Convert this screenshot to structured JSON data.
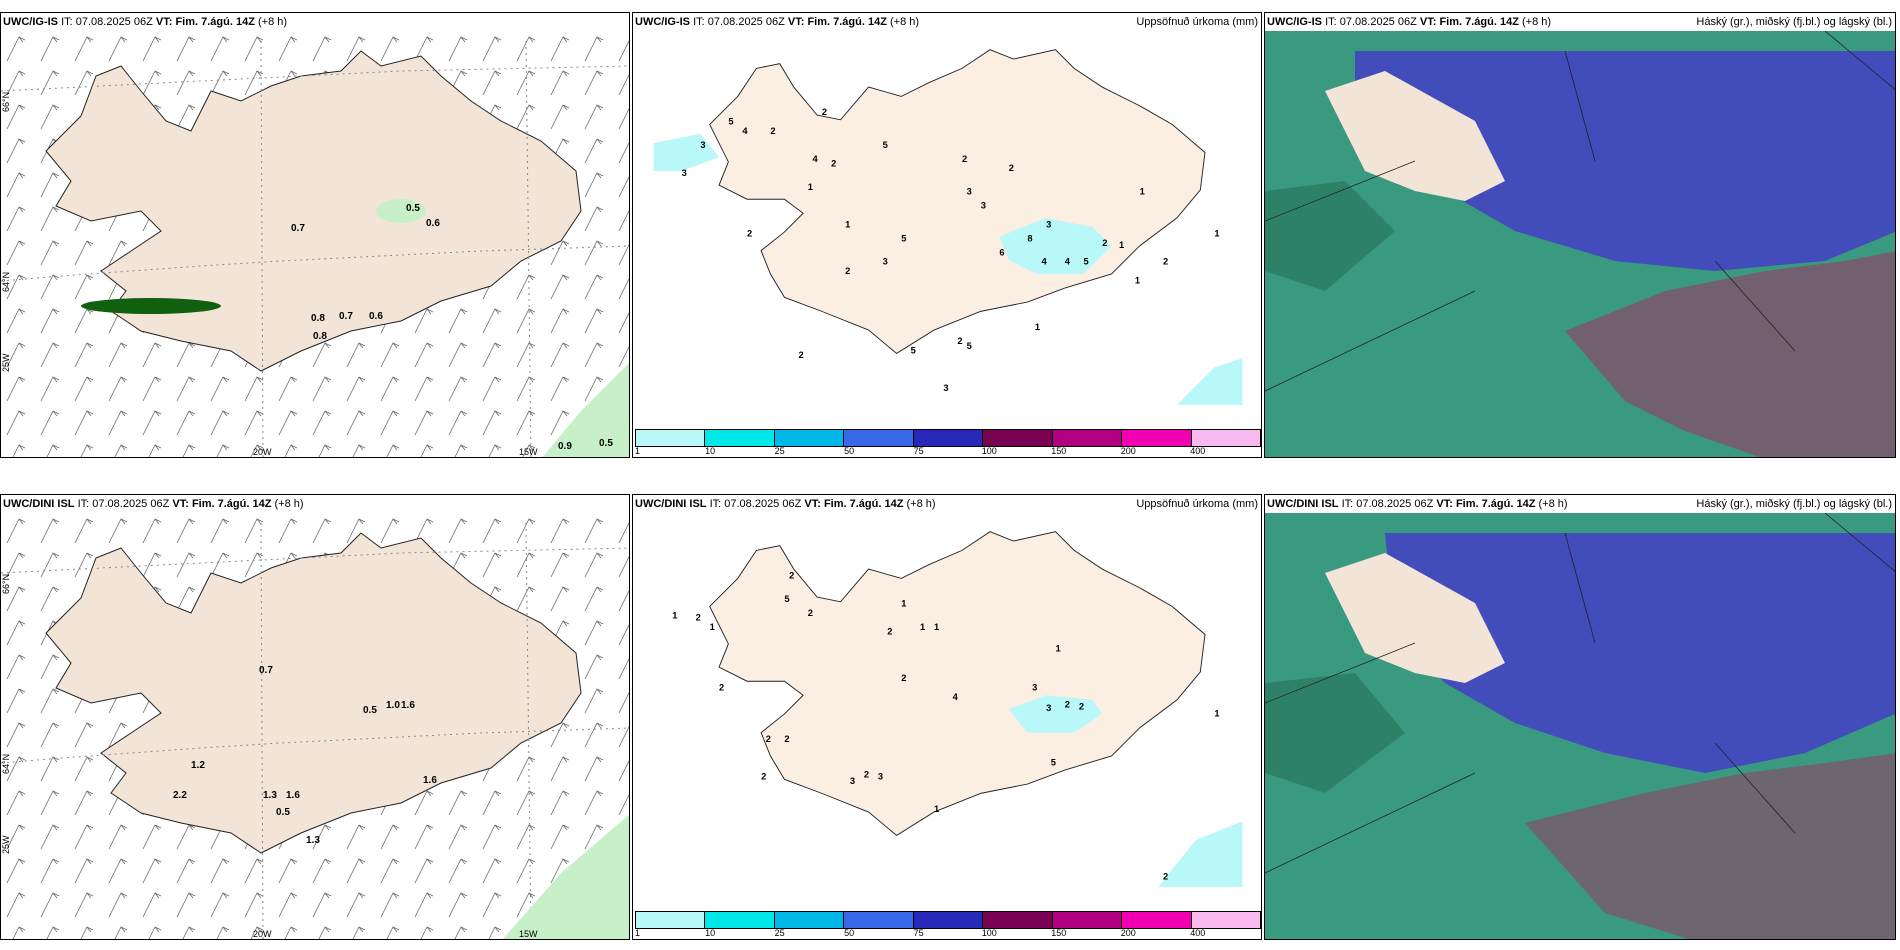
{
  "rows": [
    {
      "model": "UWC/IG-IS",
      "it_label": "IT:",
      "it_value": "07.08.2025 06Z",
      "vt_label": "VT:",
      "vt_value": "Fim. 7.ágú. 14Z",
      "lead": "(+8 h)",
      "precip_title": "Uppsöfnuð úrkoma (mm)",
      "cloud_title": "Háský (gr.), miðský (fj.bl.) og lágský (bl.)",
      "wind_labels": [
        "0.7",
        "0.5",
        "0.6",
        "0.8",
        "0.7",
        "0.6",
        "0.8",
        "0.9",
        "0.5"
      ],
      "precip_labels": [
        "3",
        "3",
        "5",
        "4",
        "2",
        "4",
        "2",
        "2",
        "1",
        "1",
        "2",
        "2",
        "5",
        "2",
        "3",
        "3",
        "2",
        "8",
        "3",
        "6",
        "4",
        "5",
        "2",
        "1",
        "1",
        "5",
        "3",
        "5",
        "2",
        "2",
        "3",
        "5",
        "1",
        "1",
        "4",
        "2",
        "1"
      ]
    },
    {
      "model": "UWC/DINI ISL",
      "it_label": "IT:",
      "it_value": "07.08.2025 06Z",
      "vt_label": "VT:",
      "vt_value": "Fim. 7.ágú. 14Z",
      "lead": "(+8 h)",
      "precip_title": "Uppsöfnuð úrkoma (mm)",
      "cloud_title": "Háský (gr.), miðský (fj.bl.) og lágský (bl.)",
      "wind_labels": [
        "0.7",
        "0.5",
        "1.0",
        "1.6",
        "1.2",
        "2.2",
        "1.3",
        "1.6",
        "0.5",
        "1.3",
        "1.6"
      ],
      "precip_labels": [
        "2",
        "5",
        "2",
        "1",
        "2",
        "1",
        "1",
        "1",
        "1",
        "2",
        "3",
        "3",
        "2",
        "2",
        "4",
        "5",
        "1",
        "1",
        "2",
        "2",
        "2",
        "2",
        "3",
        "2",
        "3",
        "2",
        "1",
        "2"
      ]
    }
  ],
  "axis_labels": {
    "lat66": "66°N",
    "lat64": "64°N",
    "lon25": "25W",
    "lon20": "20W",
    "lon15": "15W",
    "lat65": "65°N",
    "lat64r": "64°N"
  },
  "legend": {
    "ticks": [
      "1",
      "10",
      "25",
      "50",
      "75",
      "100",
      "150",
      "200",
      "400"
    ],
    "colors": [
      "#b8f8f8",
      "#00e8e8",
      "#00b8e8",
      "#3868e8",
      "#2828b8",
      "#780050",
      "#b00080",
      "#f000b0",
      "#f8b8f0"
    ]
  },
  "colors": {
    "land": "#f2e4d6",
    "land_precip": "#fbeee2",
    "precip_low": "#b8f8f8",
    "green_light": "#c8f0c8",
    "green_dark": "#106010",
    "cloud_low": "#3a9a80",
    "cloud_mid": "#4444c0",
    "cloud_high": "#a03060"
  }
}
